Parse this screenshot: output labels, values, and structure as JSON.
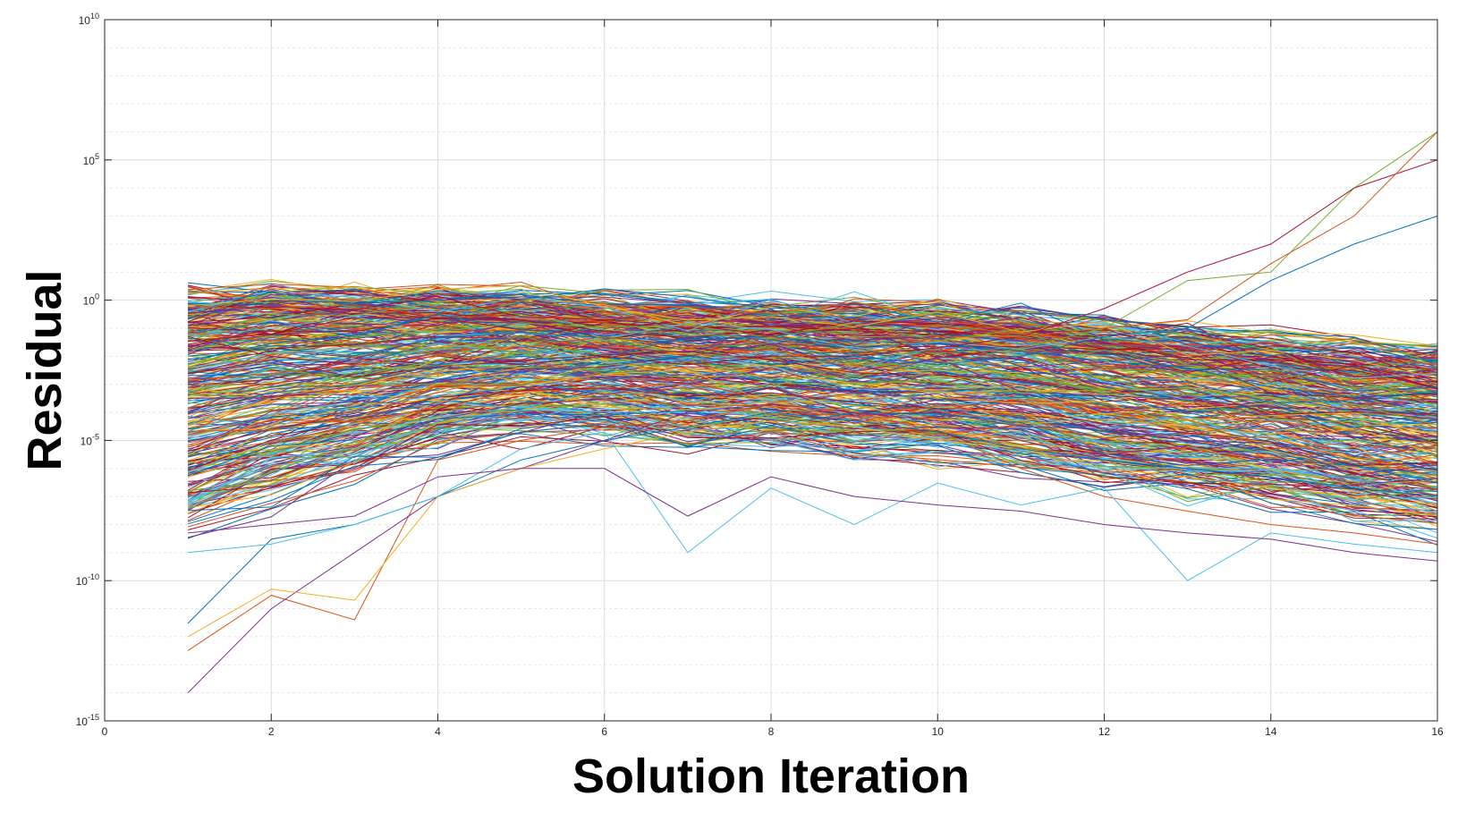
{
  "chart_data": {
    "type": "line",
    "title": "",
    "xlabel": "Solution Iteration",
    "ylabel": "Residual",
    "xlim": [
      0,
      16
    ],
    "ylim": [
      1e-15,
      10000000000.0
    ],
    "yscale": "log",
    "grid": true,
    "minor_grid": true,
    "legend": "none",
    "x_ticks": [
      0,
      2,
      4,
      6,
      8,
      10,
      12,
      14,
      16
    ],
    "x_tick_labels": [
      "0",
      "2",
      "4",
      "6",
      "8",
      "10",
      "12",
      "14",
      "16"
    ],
    "y_ticks": [
      {
        "base": "10",
        "exp": "10",
        "value": 10000000000.0
      },
      {
        "base": "10",
        "exp": "5",
        "value": 100000.0
      },
      {
        "base": "10",
        "exp": "0",
        "value": 1
      },
      {
        "base": "10",
        "exp": "-5",
        "value": 1e-05
      },
      {
        "base": "10",
        "exp": "-10",
        "value": 1e-10
      },
      {
        "base": "10",
        "exp": "-15",
        "value": 1e-15
      }
    ],
    "x": [
      1,
      2,
      3,
      4,
      5,
      6,
      7,
      8,
      9,
      10,
      11,
      12,
      13,
      14,
      15,
      16
    ],
    "band": {
      "description_values_log10": {
        "upper": [
          0.5,
          0.6,
          0.4,
          0.3,
          0.2,
          0.0,
          -0.1,
          -0.1,
          -0.2,
          -0.2,
          -0.4,
          -0.7,
          -1.0,
          -1.3,
          -1.6,
          -1.8
        ],
        "lower": [
          -8.5,
          -7.5,
          -6.5,
          -5.5,
          -5.0,
          -5.0,
          -5.3,
          -5.5,
          -5.8,
          -6.0,
          -6.3,
          -6.8,
          -7.2,
          -7.5,
          -8.0,
          -8.5
        ]
      },
      "series_count": 400
    },
    "series": [
      {
        "values": [
          3.2e-13,
          3e-11,
          4e-12,
          2e-06,
          1e-05,
          3e-05,
          5e-05,
          0.0002,
          0.0001,
          2e-05,
          1e-06,
          1e-07,
          3e-08,
          1e-08,
          5e-09,
          2e-09
        ],
        "color": "#d95319"
      },
      {
        "values": [
          1e-14,
          1e-11,
          1e-09,
          1e-07,
          1e-06,
          1e-05,
          0.0001,
          0.0002,
          0.0001,
          5e-05,
          1e-05,
          2e-06,
          1e-06,
          5e-07,
          1e-07,
          5e-08
        ],
        "color": "#7e2f8e"
      },
      {
        "values": [
          1e-12,
          5e-11,
          2e-11,
          1e-07,
          1e-06,
          5e-06,
          2e-05,
          5e-05,
          3e-05,
          1e-05,
          5e-06,
          1e-06,
          5e-07,
          2e-07,
          1e-07,
          5e-08
        ],
        "color": "#edb120"
      },
      {
        "values": [
          3e-12,
          3e-09,
          1e-08,
          1e-07,
          2e-06,
          1e-05,
          3e-05,
          0.0001,
          5e-05,
          2e-05,
          5e-06,
          2e-06,
          1e-06,
          5e-07,
          2e-07,
          1e-07
        ],
        "color": "#0072bd"
      },
      {
        "values": [
          1e-09,
          2e-09,
          1e-08,
          1e-07,
          5e-06,
          2e-05,
          1e-09,
          2e-07,
          1e-08,
          3e-07,
          5e-08,
          2e-07,
          1e-10,
          5e-09,
          2e-09,
          1e-09
        ],
        "color": "#4dbeee"
      },
      {
        "values": [
          5e-09,
          1e-08,
          2e-08,
          5e-07,
          1e-06,
          1e-06,
          2e-08,
          5e-07,
          1e-07,
          5e-08,
          3e-08,
          1e-08,
          5e-09,
          3e-09,
          1e-09,
          5e-10
        ],
        "color": "#7e2f8e"
      },
      {
        "values": [
          0.01,
          0.005,
          0.001,
          0.001,
          0.001,
          0.005,
          0.005,
          0.01,
          0.005,
          0.005,
          0.02,
          0.1,
          5.0,
          10.0,
          10000.0,
          1000000.0
        ],
        "color": "#77ac30"
      },
      {
        "values": [
          0.05,
          0.01,
          0.005,
          0.01,
          0.005,
          0.01,
          0.005,
          0.01,
          0.01,
          0.02,
          0.05,
          0.5,
          10.0,
          100.0,
          10000.0,
          100000.0
        ],
        "color": "#a2142f"
      },
      {
        "values": [
          0.001,
          0.001,
          0.005,
          0.01,
          0.02,
          0.05,
          0.02,
          0.05,
          0.01,
          0.05,
          0.05,
          0.1,
          0.2,
          20.0,
          1000.0,
          1000000.0
        ],
        "color": "#d95319"
      },
      {
        "values": [
          0.0001,
          0.0005,
          0.001,
          0.005,
          0.01,
          0.005,
          0.01,
          0.005,
          0.01,
          0.005,
          0.01,
          0.05,
          0.1,
          5.0,
          100.0,
          1000.0
        ],
        "color": "#0072bd"
      }
    ]
  }
}
